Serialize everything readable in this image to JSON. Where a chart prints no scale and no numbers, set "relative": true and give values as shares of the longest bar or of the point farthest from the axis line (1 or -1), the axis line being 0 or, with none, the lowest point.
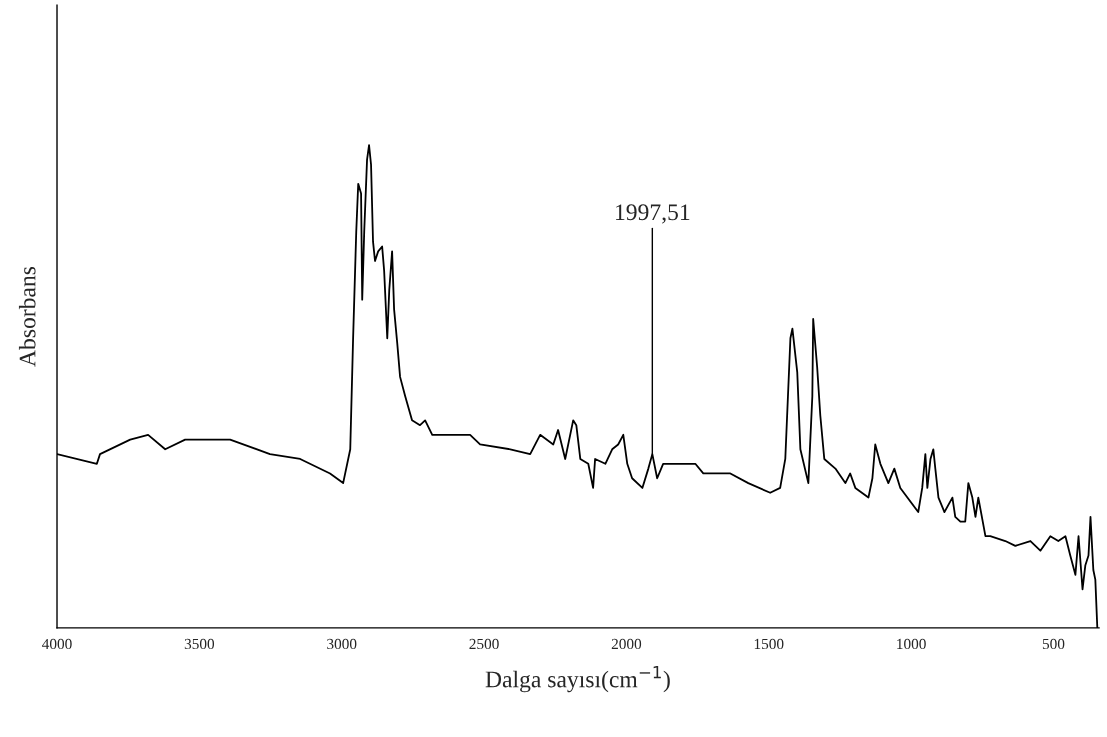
{
  "chart_data": {
    "type": "line",
    "relative": true,
    "xlabel": "Dalga sayısı(cm$^{−1}$)",
    "ylabel": "Absorbans",
    "xlim": [
      4000,
      340
    ],
    "xticks": [
      4000,
      3500,
      3000,
      2500,
      2000,
      1500,
      1000,
      500
    ],
    "grid": false,
    "marker": "none",
    "line_style": "solid",
    "annotations": [
      {
        "text": "1997,51",
        "x": 1909,
        "y": 0.36
      }
    ],
    "x": [
      4000,
      3860,
      3849,
      3743,
      3680,
      3620,
      3550,
      3392,
      3252,
      3146,
      3041,
      2995,
      2970,
      2960,
      2949,
      2942,
      2932,
      2928,
      2921,
      2911,
      2904,
      2897,
      2890,
      2883,
      2872,
      2858,
      2851,
      2840,
      2833,
      2823,
      2816,
      2805,
      2795,
      2777,
      2753,
      2725,
      2707,
      2682,
      2654,
      2549,
      2514,
      2408,
      2338,
      2303,
      2257,
      2240,
      2215,
      2187,
      2176,
      2162,
      2134,
      2117,
      2110,
      2074,
      2050,
      2029,
      2011,
      1997,
      1980,
      1944,
      1923,
      1909,
      1892,
      1871,
      1811,
      1758,
      1730,
      1635,
      1572,
      1495,
      1460,
      1442,
      1424,
      1417,
      1400,
      1389,
      1361,
      1347,
      1344,
      1330,
      1319,
      1305,
      1266,
      1231,
      1214,
      1196,
      1150,
      1136,
      1126,
      1108,
      1080,
      1059,
      1038,
      975,
      961,
      950,
      943,
      932,
      922,
      915,
      904,
      883,
      855,
      845,
      827,
      810,
      799,
      785,
      774,
      764,
      739,
      722,
      669,
      634,
      581,
      546,
      511,
      483,
      458,
      441,
      423,
      412,
      398,
      388,
      377,
      370,
      360,
      353,
      346
    ],
    "series": [
      {
        "color": "#000000",
        "values": [
          0.36,
          0.34,
          0.36,
          0.39,
          0.4,
          0.37,
          0.39,
          0.39,
          0.36,
          0.35,
          0.32,
          0.3,
          0.37,
          0.6,
          0.82,
          0.92,
          0.9,
          0.68,
          0.82,
          0.97,
          1.0,
          0.96,
          0.8,
          0.76,
          0.78,
          0.79,
          0.74,
          0.6,
          0.7,
          0.78,
          0.66,
          0.59,
          0.52,
          0.48,
          0.43,
          0.42,
          0.43,
          0.4,
          0.4,
          0.4,
          0.38,
          0.37,
          0.36,
          0.4,
          0.38,
          0.41,
          0.35,
          0.43,
          0.42,
          0.35,
          0.34,
          0.29,
          0.35,
          0.34,
          0.37,
          0.38,
          0.4,
          0.34,
          0.31,
          0.29,
          0.33,
          0.36,
          0.31,
          0.34,
          0.34,
          0.34,
          0.32,
          0.32,
          0.3,
          0.28,
          0.29,
          0.35,
          0.6,
          0.62,
          0.53,
          0.37,
          0.3,
          0.48,
          0.64,
          0.54,
          0.44,
          0.35,
          0.33,
          0.3,
          0.32,
          0.29,
          0.27,
          0.31,
          0.38,
          0.34,
          0.3,
          0.33,
          0.29,
          0.24,
          0.29,
          0.36,
          0.29,
          0.35,
          0.37,
          0.33,
          0.27,
          0.24,
          0.27,
          0.23,
          0.22,
          0.22,
          0.3,
          0.27,
          0.23,
          0.27,
          0.19,
          0.19,
          0.18,
          0.17,
          0.18,
          0.16,
          0.19,
          0.18,
          0.19,
          0.15,
          0.11,
          0.19,
          0.08,
          0.13,
          0.15,
          0.23,
          0.12,
          0.1,
          0.0
        ]
      }
    ]
  }
}
